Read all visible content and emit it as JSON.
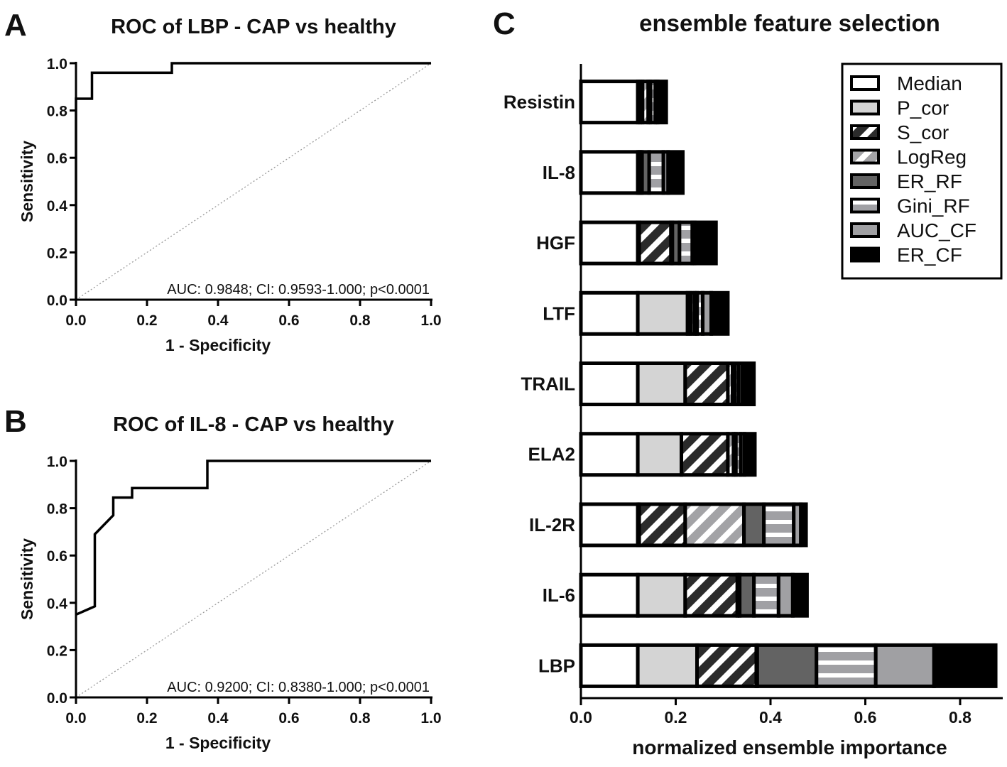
{
  "chart_data": [
    {
      "panel": "A",
      "type": "line",
      "title": "ROC of LBP - CAP vs healthy",
      "xlabel": "1 - Specificity",
      "ylabel": "Sensitivity",
      "xlim": [
        0,
        1
      ],
      "ylim": [
        0,
        1
      ],
      "xticks": [
        "0.0",
        "0.2",
        "0.4",
        "0.6",
        "0.8",
        "1.0"
      ],
      "yticks": [
        "0.0",
        "0.2",
        "0.4",
        "0.6",
        "0.8",
        "1.0"
      ],
      "annotation": "AUC: 0.9848; CI: 0.9593-1.000; p<0.0001",
      "series": [
        {
          "name": "ROC",
          "x": [
            0,
            0,
            0.045,
            0.045,
            0.27,
            0.27,
            1
          ],
          "y": [
            0,
            0.85,
            0.85,
            0.96,
            0.96,
            1,
            1
          ]
        },
        {
          "name": "reference",
          "x": [
            0,
            1
          ],
          "y": [
            0,
            1
          ],
          "style": "dotted"
        }
      ]
    },
    {
      "panel": "B",
      "type": "line",
      "title": "ROC of IL-8 - CAP vs healthy",
      "xlabel": "1 - Specificity",
      "ylabel": "Sensitivity",
      "xlim": [
        0,
        1
      ],
      "ylim": [
        0,
        1
      ],
      "xticks": [
        "0.0",
        "0.2",
        "0.4",
        "0.6",
        "0.8",
        "1.0"
      ],
      "yticks": [
        "0.0",
        "0.2",
        "0.4",
        "0.6",
        "0.8",
        "1.0"
      ],
      "annotation": "AUC: 0.9200; CI: 0.8380-1.000; p<0.0001",
      "series": [
        {
          "name": "ROC",
          "x": [
            0,
            0.053,
            0.053,
            0.105,
            0.105,
            0.158,
            0.158,
            0.37,
            0.37,
            1
          ],
          "y": [
            0.35,
            0.385,
            0.69,
            0.77,
            0.845,
            0.845,
            0.885,
            0.885,
            1,
            1
          ]
        },
        {
          "name": "reference",
          "x": [
            0,
            1
          ],
          "y": [
            0,
            1
          ],
          "style": "dotted"
        }
      ]
    },
    {
      "panel": "C",
      "type": "bar",
      "orientation": "horizontal",
      "stacked": true,
      "title": "ensemble feature selection",
      "xlabel": "normalized ensemble importance",
      "ylabel": "",
      "xlim": [
        0,
        0.9
      ],
      "xticks": [
        "0.0",
        "0.2",
        "0.4",
        "0.6",
        "0.8"
      ],
      "legend_position": "top-right",
      "categories": [
        "Resistin",
        "IL-8",
        "HGF",
        "LTF",
        "TRAIL",
        "ELA2",
        "IL-2R",
        "IL-6",
        "LBP"
      ],
      "series": [
        {
          "name": "Median",
          "fill": "white",
          "values": [
            0.12,
            0.12,
            0.12,
            0.12,
            0.12,
            0.12,
            0.12,
            0.12,
            0.12
          ]
        },
        {
          "name": "P_cor",
          "fill": "light",
          "values": [
            0.005,
            0.003,
            0.003,
            0.105,
            0.1,
            0.092,
            0.003,
            0.1,
            0.125
          ]
        },
        {
          "name": "S_cor",
          "fill": "diagDark",
          "values": [
            0.005,
            0.003,
            0.067,
            0.007,
            0.09,
            0.098,
            0.097,
            0.11,
            0.125
          ]
        },
        {
          "name": "LogReg",
          "fill": "diagGray",
          "values": [
            0.012,
            0.003,
            0.003,
            0.008,
            0.01,
            0.012,
            0.124,
            0.005,
            0.002
          ]
        },
        {
          "name": "ER_RF",
          "fill": "dark",
          "values": [
            0.005,
            0.015,
            0.015,
            0.005,
            0.005,
            0.005,
            0.042,
            0.03,
            0.125
          ]
        },
        {
          "name": "Gini_RF",
          "fill": "hstripe",
          "values": [
            0.01,
            0.03,
            0.027,
            0.012,
            0.008,
            0.01,
            0.063,
            0.052,
            0.125
          ]
        },
        {
          "name": "AUC_CF",
          "fill": "mid",
          "values": [
            0.005,
            0.01,
            0.005,
            0.018,
            0.008,
            0.008,
            0.015,
            0.03,
            0.123
          ]
        },
        {
          "name": "ER_CF",
          "fill": "black",
          "values": [
            0.018,
            0.031,
            0.045,
            0.035,
            0.024,
            0.022,
            0.011,
            0.03,
            0.13
          ]
        }
      ]
    }
  ],
  "labels": {
    "a": "A",
    "b": "B",
    "c": "C"
  }
}
